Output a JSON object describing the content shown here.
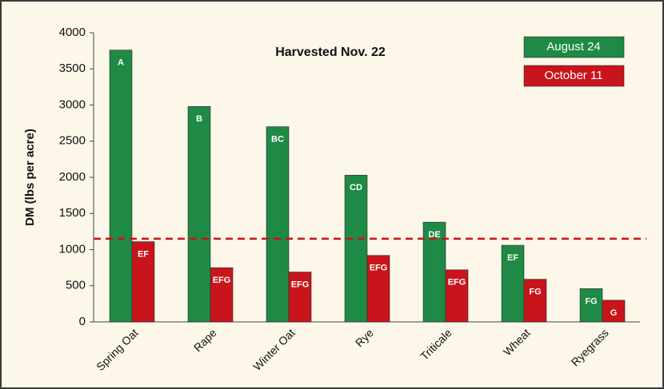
{
  "chart_data": {
    "type": "bar",
    "title": "Harvested Nov. 22",
    "y_label": "DM (lbs per acre)",
    "categories": [
      "Spring Oat",
      "Rape",
      "Winter Oat",
      "Rye",
      "Triticale",
      "Wheat",
      "Ryegrass"
    ],
    "series": [
      {
        "name": "August 24",
        "color": "#1e8a45",
        "values": [
          3760,
          2980,
          2700,
          2030,
          1380,
          1060,
          460
        ],
        "letters": [
          "A",
          "B",
          "BC",
          "CD",
          "DE",
          "EF",
          "FG"
        ]
      },
      {
        "name": "October 11",
        "color": "#c8141b",
        "values": [
          1110,
          750,
          690,
          920,
          720,
          590,
          300
        ],
        "letters": [
          "EF",
          "EFG",
          "EFG",
          "EFG",
          "EFG",
          "FG",
          "G"
        ]
      }
    ],
    "reference_line": {
      "value": 1150,
      "color": "#c8141b"
    },
    "ylim": [
      0,
      4000
    ],
    "yticks": [
      0,
      500,
      1000,
      1500,
      2000,
      2500,
      3000,
      3500,
      4000
    ],
    "grid": false,
    "legend": "top-right"
  }
}
